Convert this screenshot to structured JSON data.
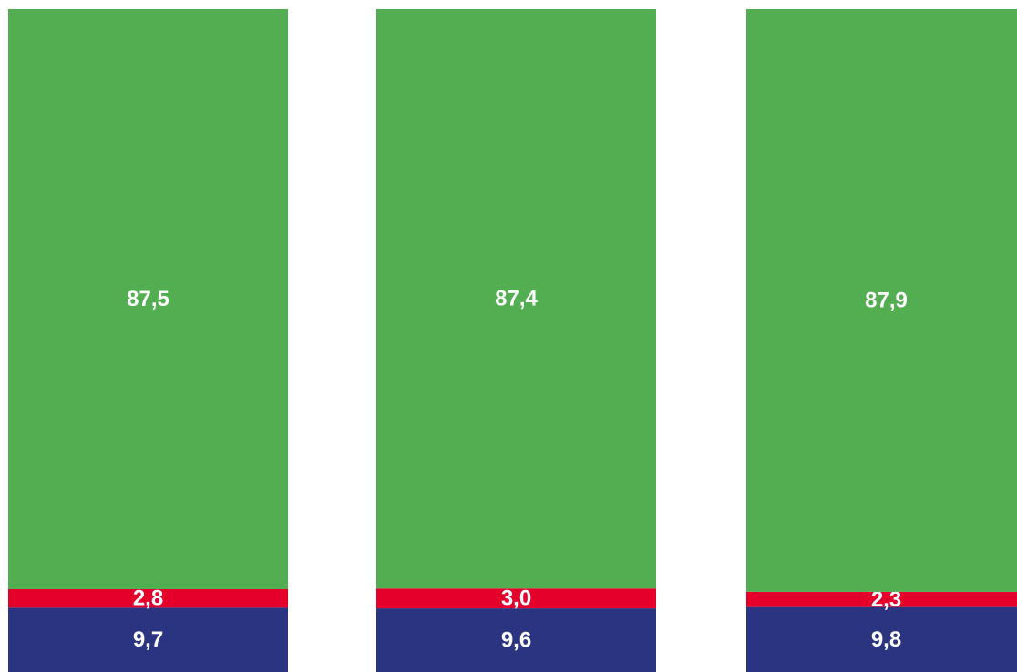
{
  "chart_data": {
    "type": "bar",
    "stacked": true,
    "orientation": "vertical",
    "normalized_total": 100,
    "categories": [
      "",
      "",
      ""
    ],
    "series": [
      {
        "color": "#2b3480",
        "values": [
          9.7,
          9.6,
          9.8
        ],
        "labels": [
          "9,7",
          "9,6",
          "9,8"
        ]
      },
      {
        "color": "#e4002b",
        "values": [
          2.8,
          3.0,
          2.3
        ],
        "labels": [
          "2,8",
          "3,0",
          "2,3"
        ]
      },
      {
        "color": "#52ae51",
        "values": [
          87.5,
          87.4,
          87.9
        ],
        "labels": [
          "87,5",
          "87,4",
          "87,9"
        ]
      }
    ],
    "title": "",
    "xlabel": "",
    "ylabel": "",
    "legend": "none",
    "grid": false,
    "axes_visible": false
  }
}
